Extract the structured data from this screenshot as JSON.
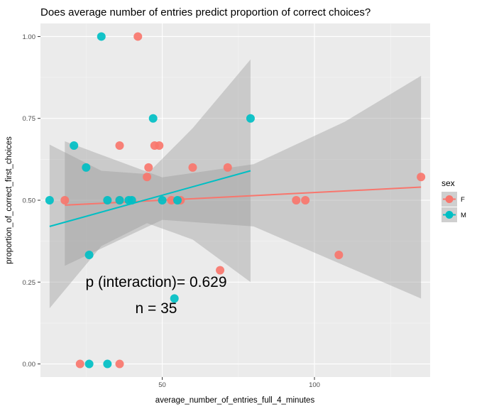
{
  "chart_data": {
    "type": "scatter",
    "title": "Does average number of entries predict proportion of correct choices?",
    "xlabel": "average_number_of_entries_full_4_minutes",
    "ylabel": "proportion_of_correct_first_choices",
    "xlim": [
      10,
      138
    ],
    "ylim": [
      -0.04,
      1.04
    ],
    "x_ticks": [
      50,
      100
    ],
    "y_ticks": [
      0,
      0.25,
      0.5,
      0.75,
      1
    ],
    "y_tick_labels": [
      "0.00",
      "0.25",
      "0.50",
      "0.75",
      "1.00"
    ],
    "grid": true,
    "legend": {
      "title": "sex",
      "placement": "right",
      "entries": [
        {
          "label": "F",
          "color": "#F8766D"
        },
        {
          "label": "M",
          "color": "#00BFC4"
        }
      ]
    },
    "series": [
      {
        "name": "F",
        "color": "#F8766D",
        "points": [
          {
            "x": 42,
            "y": 1.0
          },
          {
            "x": 36,
            "y": 0.667
          },
          {
            "x": 47.5,
            "y": 0.667
          },
          {
            "x": 49,
            "y": 0.667
          },
          {
            "x": 45.5,
            "y": 0.6
          },
          {
            "x": 60,
            "y": 0.6
          },
          {
            "x": 71.5,
            "y": 0.6
          },
          {
            "x": 45,
            "y": 0.571
          },
          {
            "x": 18,
            "y": 0.5
          },
          {
            "x": 36,
            "y": 0.5
          },
          {
            "x": 53,
            "y": 0.5
          },
          {
            "x": 56,
            "y": 0.5
          },
          {
            "x": 94,
            "y": 0.5
          },
          {
            "x": 97,
            "y": 0.5
          },
          {
            "x": 135,
            "y": 0.571
          },
          {
            "x": 108,
            "y": 0.333
          },
          {
            "x": 69,
            "y": 0.286
          },
          {
            "x": 23,
            "y": 0.0
          },
          {
            "x": 36,
            "y": 0.0
          }
        ],
        "fit": {
          "x0": 18,
          "y0": 0.485,
          "x1": 135,
          "y1": 0.54
        },
        "ci_at": [
          {
            "x": 18,
            "lo": 0.3,
            "hi": 0.68
          },
          {
            "x": 50,
            "lo": 0.44,
            "hi": 0.57
          },
          {
            "x": 80,
            "lo": 0.42,
            "hi": 0.61
          },
          {
            "x": 110,
            "lo": 0.3,
            "hi": 0.74
          },
          {
            "x": 135,
            "lo": 0.2,
            "hi": 0.88
          }
        ]
      },
      {
        "name": "M",
        "color": "#00BFC4",
        "points": [
          {
            "x": 30,
            "y": 1.0
          },
          {
            "x": 47,
            "y": 0.75
          },
          {
            "x": 79,
            "y": 0.75
          },
          {
            "x": 21,
            "y": 0.667
          },
          {
            "x": 25,
            "y": 0.6
          },
          {
            "x": 13,
            "y": 0.5
          },
          {
            "x": 32,
            "y": 0.5
          },
          {
            "x": 36,
            "y": 0.5
          },
          {
            "x": 39,
            "y": 0.5
          },
          {
            "x": 40,
            "y": 0.5
          },
          {
            "x": 50,
            "y": 0.5
          },
          {
            "x": 55,
            "y": 0.5
          },
          {
            "x": 26,
            "y": 0.333
          },
          {
            "x": 54,
            "y": 0.2
          },
          {
            "x": 26,
            "y": 0.0
          },
          {
            "x": 32,
            "y": 0.0
          }
        ],
        "fit": {
          "x0": 13,
          "y0": 0.42,
          "x1": 79,
          "y1": 0.59
        },
        "ci_at": [
          {
            "x": 13,
            "lo": 0.17,
            "hi": 0.67
          },
          {
            "x": 30,
            "lo": 0.36,
            "hi": 0.59
          },
          {
            "x": 45,
            "lo": 0.43,
            "hi": 0.58
          },
          {
            "x": 60,
            "lo": 0.38,
            "hi": 0.72
          },
          {
            "x": 79,
            "lo": 0.25,
            "hi": 0.93
          }
        ]
      }
    ],
    "annotations": [
      "p (interaction)= 0.629",
      "n = 35"
    ]
  },
  "annotation_positions": [
    {
      "x": 48,
      "y": 0.235
    },
    {
      "x": 48,
      "y": 0.155
    }
  ]
}
